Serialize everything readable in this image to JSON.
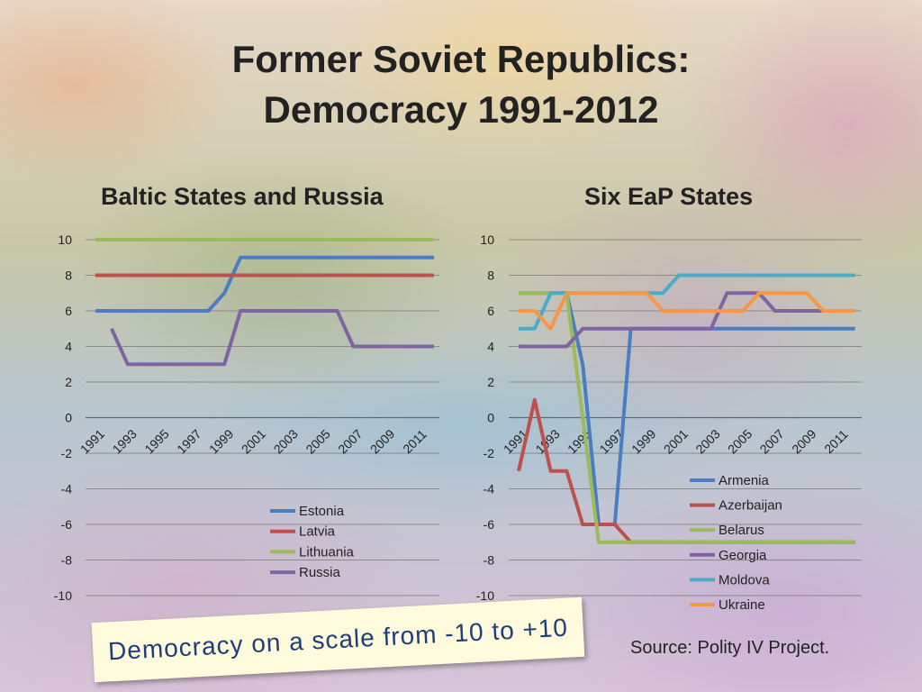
{
  "slide": {
    "title_line1": "Former Soviet Republics:",
    "title_line2": "Democracy 1991-2012",
    "note": "Democracy on a scale from -10 to +10",
    "source": "Source: Polity IV Project."
  },
  "chart_data": [
    {
      "type": "line",
      "title": "Baltic States and Russia",
      "x": [
        1991,
        1992,
        1993,
        1994,
        1995,
        1996,
        1997,
        1998,
        1999,
        2000,
        2001,
        2002,
        2003,
        2004,
        2005,
        2006,
        2007,
        2008,
        2009,
        2010,
        2011,
        2012
      ],
      "xticks": [
        "1991",
        "1993",
        "1995",
        "1997",
        "1999",
        "2001",
        "2003",
        "2005",
        "2007",
        "2009",
        "2011"
      ],
      "ylim": [
        -10,
        10
      ],
      "yticks": [
        10,
        8,
        6,
        4,
        2,
        0,
        -2,
        -4,
        -6,
        -8,
        -10
      ],
      "grid": true,
      "legend": "bottom-right",
      "series": [
        {
          "name": "Estonia",
          "color": "#4a7ec0",
          "values": [
            6,
            6,
            6,
            6,
            6,
            6,
            6,
            6,
            7,
            9,
            9,
            9,
            9,
            9,
            9,
            9,
            9,
            9,
            9,
            9,
            9,
            9
          ]
        },
        {
          "name": "Latvia",
          "color": "#c0504d",
          "values": [
            8,
            8,
            8,
            8,
            8,
            8,
            8,
            8,
            8,
            8,
            8,
            8,
            8,
            8,
            8,
            8,
            8,
            8,
            8,
            8,
            8,
            8
          ]
        },
        {
          "name": "Lithuania",
          "color": "#9bbb59",
          "values": [
            10,
            10,
            10,
            10,
            10,
            10,
            10,
            10,
            10,
            10,
            10,
            10,
            10,
            10,
            10,
            10,
            10,
            10,
            10,
            10,
            10,
            10
          ]
        },
        {
          "name": "Russia",
          "color": "#8064a2",
          "values": [
            null,
            5,
            3,
            3,
            3,
            3,
            3,
            3,
            3,
            6,
            6,
            6,
            6,
            6,
            6,
            6,
            4,
            4,
            4,
            4,
            4,
            4
          ]
        }
      ]
    },
    {
      "type": "line",
      "title": "Six EaP States",
      "x": [
        1991,
        1992,
        1993,
        1994,
        1995,
        1996,
        1997,
        1998,
        1999,
        2000,
        2001,
        2002,
        2003,
        2004,
        2005,
        2006,
        2007,
        2008,
        2009,
        2010,
        2011,
        2012
      ],
      "xticks": [
        "1991",
        "1993",
        "1995",
        "1997",
        "1999",
        "2001",
        "2003",
        "2005",
        "2007",
        "2009",
        "2011"
      ],
      "ylim": [
        -10,
        10
      ],
      "yticks": [
        10,
        8,
        6,
        4,
        2,
        0,
        -2,
        -4,
        -6,
        -8,
        -10
      ],
      "grid": true,
      "legend": "bottom-right",
      "series": [
        {
          "name": "Armenia",
          "color": "#4a7ec0",
          "values": [
            7,
            7,
            7,
            7,
            3,
            -6,
            -6,
            5,
            5,
            5,
            5,
            5,
            5,
            5,
            5,
            5,
            5,
            5,
            5,
            5,
            5,
            5
          ]
        },
        {
          "name": "Azerbaijan",
          "color": "#c0504d",
          "values": [
            -3,
            1,
            -3,
            -3,
            -6,
            -6,
            -6,
            -7,
            -7,
            -7,
            -7,
            -7,
            -7,
            -7,
            -7,
            -7,
            -7,
            -7,
            -7,
            -7,
            -7,
            -7
          ]
        },
        {
          "name": "Belarus",
          "color": "#9bbb59",
          "values": [
            7,
            7,
            7,
            7,
            0,
            -7,
            -7,
            -7,
            -7,
            -7,
            -7,
            -7,
            -7,
            -7,
            -7,
            -7,
            -7,
            -7,
            -7,
            -7,
            -7,
            -7
          ]
        },
        {
          "name": "Georgia",
          "color": "#8064a2",
          "values": [
            4,
            4,
            4,
            4,
            5,
            5,
            5,
            5,
            5,
            5,
            5,
            5,
            5,
            7,
            7,
            7,
            6,
            6,
            6,
            6,
            6,
            6
          ]
        },
        {
          "name": "Moldova",
          "color": "#4bacc6",
          "values": [
            5,
            5,
            7,
            7,
            7,
            7,
            7,
            7,
            7,
            7,
            8,
            8,
            8,
            8,
            8,
            8,
            8,
            8,
            8,
            8,
            8,
            8
          ]
        },
        {
          "name": "Ukraine",
          "color": "#f79646",
          "values": [
            6,
            6,
            5,
            7,
            7,
            7,
            7,
            7,
            7,
            6,
            6,
            6,
            6,
            6,
            6,
            7,
            7,
            7,
            7,
            6,
            6,
            6
          ]
        }
      ]
    }
  ]
}
